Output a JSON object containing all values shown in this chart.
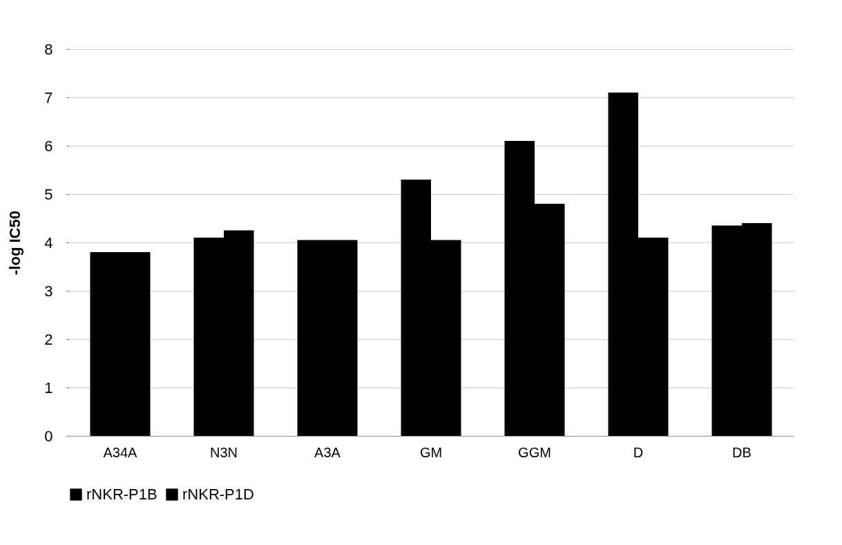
{
  "chart_data": {
    "type": "bar",
    "ylabel": "-log IC50",
    "categories": [
      "A34A",
      "N3N",
      "A3A",
      "GM",
      "GGM",
      "D",
      "DB"
    ],
    "series": [
      {
        "name": "rNKR-P1B",
        "color": "#000000",
        "values": [
          3.8,
          4.1,
          4.05,
          5.3,
          6.1,
          7.1,
          4.35
        ]
      },
      {
        "name": "rNKR-P1D",
        "color": "#000000",
        "values": [
          3.8,
          4.25,
          4.05,
          4.05,
          4.8,
          4.1,
          4.4
        ]
      }
    ],
    "ylim": [
      0,
      8
    ],
    "yticks": [
      0,
      1,
      2,
      3,
      4,
      5,
      6,
      7,
      8
    ],
    "grid": "y",
    "legend": "bottom"
  }
}
